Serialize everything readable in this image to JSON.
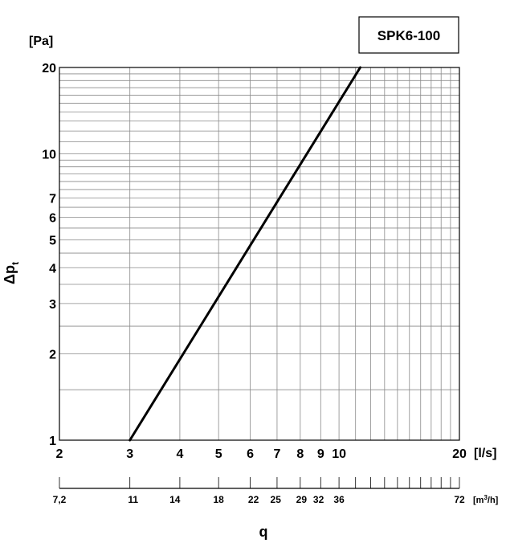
{
  "chart_data": {
    "type": "line",
    "title": "SPK6-100",
    "xlabel": "q",
    "ylabel_main": "Δp",
    "ylabel_sub": "t",
    "y_unit": "[Pa]",
    "x_unit": "[l/s]",
    "x2_unit_main": "[m",
    "x2_unit_sup": "3",
    "x2_unit_end": "/h]",
    "x_scale": "log",
    "y_scale": "log",
    "xlim": [
      2,
      20
    ],
    "ylim": [
      1,
      20
    ],
    "grid": true,
    "x_ticks": [
      "2",
      "3",
      "4",
      "5",
      "6",
      "7",
      "8",
      "9",
      "10",
      "20"
    ],
    "y_ticks": [
      "1",
      "2",
      "3",
      "4",
      "5",
      "6",
      "7",
      "10",
      "20"
    ],
    "x2_ticks": [
      "7,2",
      "11",
      "14",
      "18",
      "22",
      "25",
      "29",
      "32",
      "36",
      "72"
    ],
    "series": [
      {
        "x": [
          3.0,
          11.3
        ],
        "y": [
          1.0,
          20.0
        ]
      }
    ]
  }
}
